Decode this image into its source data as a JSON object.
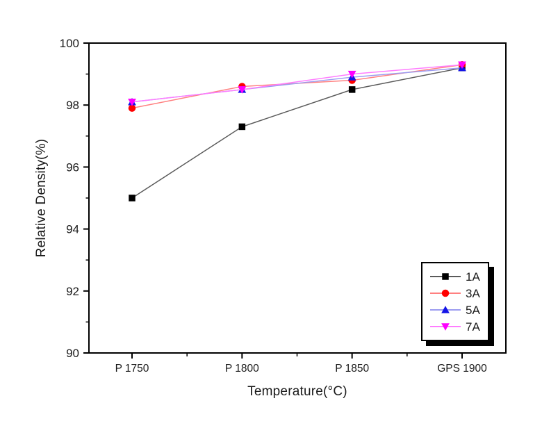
{
  "figure": {
    "background": "#ffffff",
    "axis_color": "#000000",
    "text_color": "#1a1a1a"
  },
  "chart_data": {
    "type": "line",
    "title": "",
    "xlabel": "Temperature(°C)",
    "ylabel": "Relative Density(%)",
    "categories": [
      "P 1750",
      "P 1800",
      "P 1850",
      "GPS 1900"
    ],
    "series": [
      {
        "name": "1A",
        "marker": "square",
        "marker_color": "#000000",
        "line_color": "#5a5a5a",
        "values": [
          95.0,
          97.3,
          98.5,
          99.2
        ]
      },
      {
        "name": "3A",
        "marker": "circle",
        "marker_color": "#ff0000",
        "line_color": "#ff8080",
        "values": [
          97.9,
          98.6,
          98.8,
          99.3
        ]
      },
      {
        "name": "5A",
        "marker": "triangle-up",
        "marker_color": "#1414e6",
        "line_color": "#9c9cf0",
        "values": [
          98.1,
          98.5,
          98.9,
          99.2
        ]
      },
      {
        "name": "7A",
        "marker": "triangle-down",
        "marker_color": "#ff00ff",
        "line_color": "#ff7dff",
        "values": [
          98.1,
          98.5,
          99.0,
          99.3
        ]
      }
    ],
    "ylim": [
      90,
      100
    ],
    "y_major_ticks": [
      90,
      92,
      94,
      96,
      98,
      100
    ],
    "y_minor_ticks": [
      91,
      93,
      95,
      97,
      99
    ],
    "grid": false,
    "legend_position": "bottom-right",
    "legend_entries": [
      "1A",
      "3A",
      "5A",
      "7A"
    ]
  }
}
